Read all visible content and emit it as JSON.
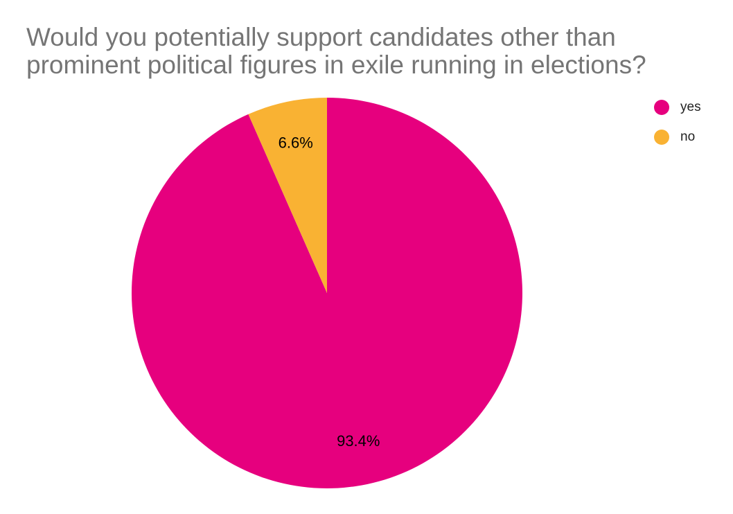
{
  "chart_data": {
    "type": "pie",
    "title": "Would you potentially support candidates other than prominent political figures in exile running in elections?",
    "categories": [
      "yes",
      "no"
    ],
    "values": [
      93.4,
      6.6
    ],
    "value_labels": [
      "93.4%",
      "6.6%"
    ],
    "colors": [
      "#e6007e",
      "#f9b233"
    ],
    "legend": "top-right"
  }
}
